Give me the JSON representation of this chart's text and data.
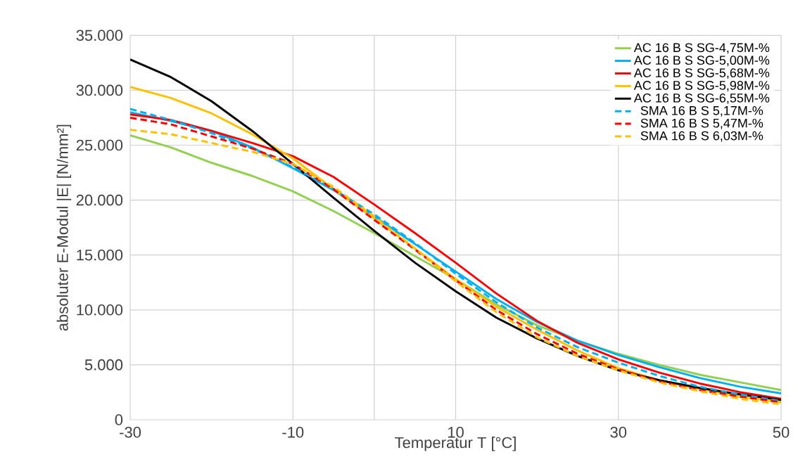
{
  "chart_data": {
    "type": "line",
    "xlabel": "Temperatur T [°C]",
    "ylabel": "absoluter E-Modul |E|  [N/mm²]",
    "x": [
      -30,
      -25,
      -20,
      -15,
      -10,
      -5,
      0,
      5,
      10,
      15,
      20,
      25,
      30,
      35,
      40,
      45,
      50
    ],
    "xlim": [
      -30,
      50
    ],
    "xticks": [
      -30,
      -10,
      {
        "value": 0,
        "label": null
      },
      10,
      30,
      50
    ],
    "ylim": [
      0,
      35000
    ],
    "yticks": [
      0,
      {
        "value": 5000,
        "label": "5.000"
      },
      {
        "value": 10000,
        "label": "10.000"
      },
      {
        "value": 15000,
        "label": "15.000"
      },
      {
        "value": 20000,
        "label": "20.000"
      },
      {
        "value": 25000,
        "label": "25.000"
      },
      {
        "value": 30000,
        "label": "30.000"
      },
      {
        "value": 35000,
        "label": "35.000"
      }
    ],
    "grid": true,
    "legend": "top right",
    "series": [
      {
        "name": "AC 16 B S SG-4,75M-%",
        "color": "#92d050",
        "line_style": "solid",
        "values": [
          25900,
          24800,
          23400,
          22200,
          20800,
          19000,
          17000,
          14900,
          12800,
          10500,
          8600,
          7200,
          6000,
          5000,
          4100,
          3400,
          2700
        ]
      },
      {
        "name": "AC 16 B S SG-5,00M-%",
        "color": "#00b0f0",
        "line_style": "solid",
        "values": [
          28000,
          27200,
          26300,
          24800,
          22900,
          20900,
          18500,
          16000,
          13500,
          11000,
          8900,
          7200,
          5900,
          4800,
          3800,
          3000,
          2400
        ]
      },
      {
        "name": "AC 16 B S SG-5,68M-%",
        "color": "#ff0000",
        "line_style": "solid",
        "values": [
          27800,
          27300,
          26300,
          25200,
          24000,
          22100,
          19600,
          17000,
          14300,
          11500,
          9000,
          7000,
          5500,
          4300,
          3300,
          2500,
          1900
        ]
      },
      {
        "name": "AC 16 B S SG-5,98M-%",
        "color": "#ffc000",
        "line_style": "solid",
        "values": [
          30300,
          29300,
          27900,
          26000,
          23800,
          21000,
          18300,
          15600,
          12800,
          10300,
          8200,
          6300,
          4700,
          3600,
          2800,
          2100,
          1600
        ]
      },
      {
        "name": "AC 16 B S SG-6,55M-%",
        "color": "#000000",
        "line_style": "solid",
        "values": [
          32800,
          31200,
          29000,
          26300,
          23300,
          20200,
          17200,
          14300,
          11700,
          9300,
          7400,
          5800,
          4500,
          3600,
          2900,
          2300,
          1800
        ]
      },
      {
        "name": "SMA 16 B S 5,17M-%",
        "color": "#00b0f0",
        "line_style": "dashed",
        "values": [
          28300,
          27300,
          26100,
          24700,
          23000,
          21000,
          18700,
          16100,
          13300,
          10700,
          8400,
          6600,
          5200,
          4000,
          3000,
          2300,
          1700
        ]
      },
      {
        "name": "SMA 16 B S 5,47M-%",
        "color": "#ff0000",
        "line_style": "dashed",
        "values": [
          27500,
          26900,
          25800,
          24700,
          23300,
          21000,
          18200,
          15500,
          12700,
          10000,
          7800,
          6000,
          4600,
          3500,
          2700,
          2100,
          1600
        ]
      },
      {
        "name": "SMA 16 B S 6,03M-%",
        "color": "#ffc000",
        "line_style": "dashed",
        "values": [
          26400,
          26000,
          25200,
          24400,
          23300,
          21200,
          18500,
          15600,
          12600,
          9800,
          7500,
          5800,
          4500,
          3400,
          2600,
          1900,
          1400
        ]
      }
    ]
  }
}
